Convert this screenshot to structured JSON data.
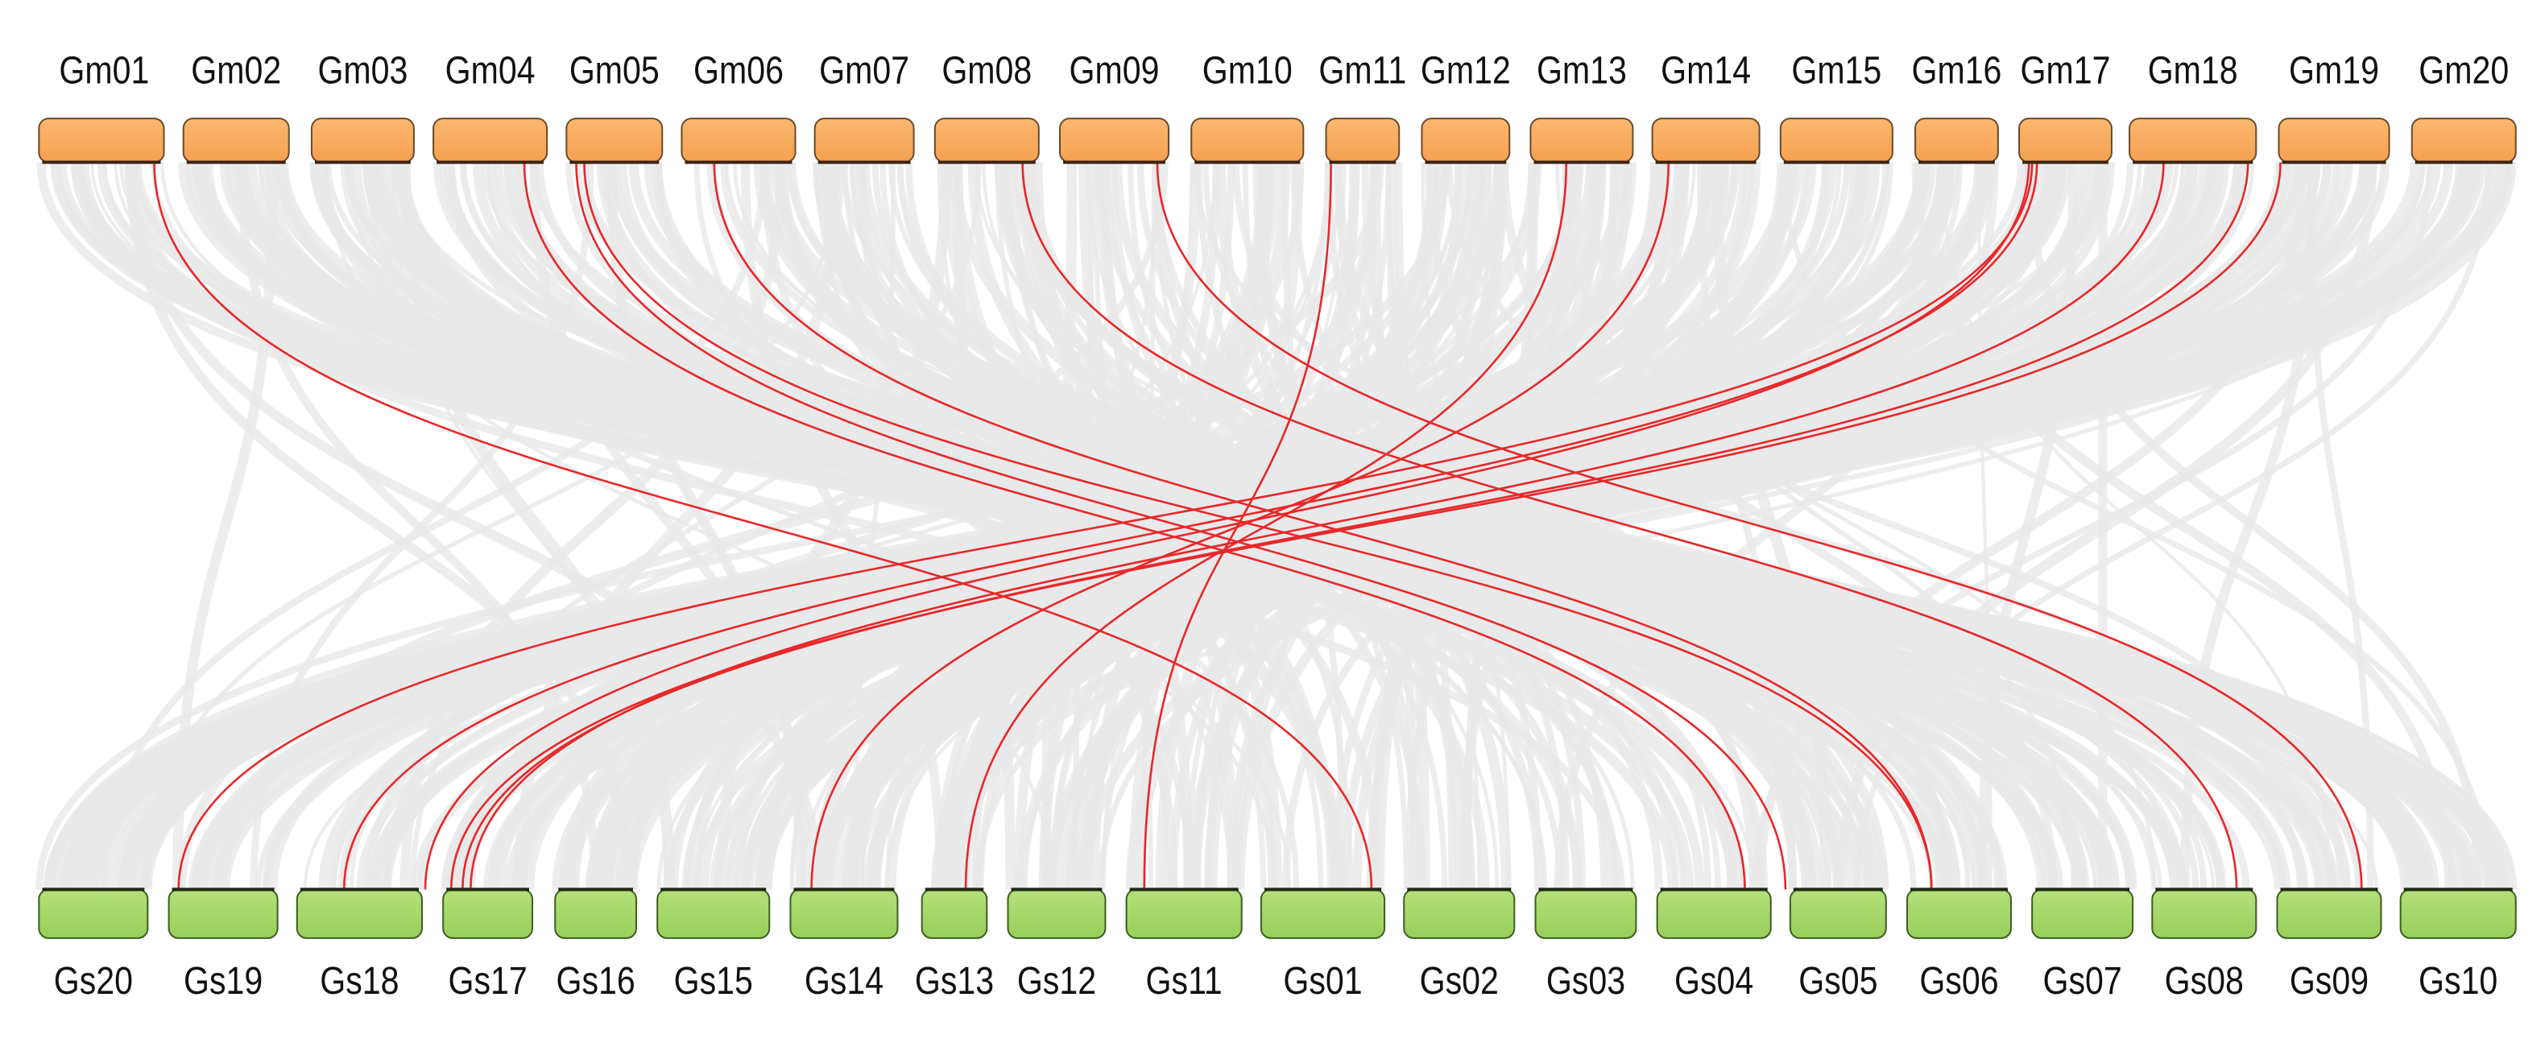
{
  "top_chromosomes": [
    "Gm01",
    "Gm02",
    "Gm03",
    "Gm04",
    "Gm05",
    "Gm06",
    "Gm07",
    "Gm08",
    "Gm09",
    "Gm10",
    "Gm11",
    "Gm12",
    "Gm13",
    "Gm14",
    "Gm15",
    "Gm16",
    "Gm17",
    "Gm18",
    "Gm19",
    "Gm20"
  ],
  "bottom_chromosomes": [
    "Gs20",
    "Gs19",
    "Gs18",
    "Gs17",
    "Gs16",
    "Gs15",
    "Gs14",
    "Gs13",
    "Gs12",
    "Gs11",
    "Gs01",
    "Gs02",
    "Gs03",
    "Gs04",
    "Gs05",
    "Gs06",
    "Gs07",
    "Gs08",
    "Gs09",
    "Gs10"
  ]
}
